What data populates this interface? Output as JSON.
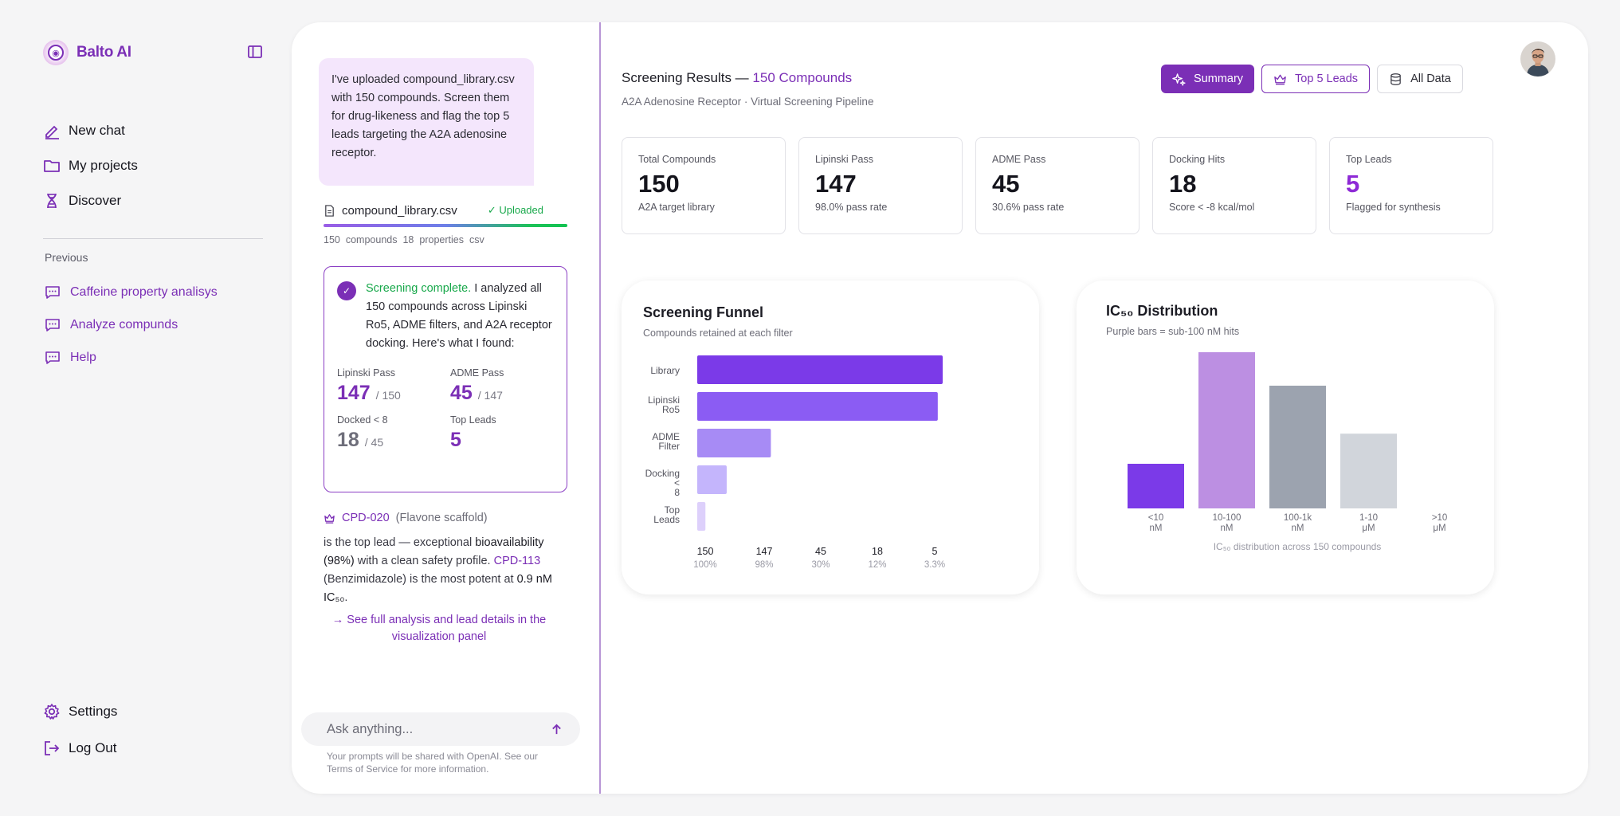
{
  "brand": {
    "name": "Balto AI"
  },
  "nav": {
    "new_chat": "New chat",
    "projects": "My projects",
    "discover": "Discover"
  },
  "previous": {
    "label": "Previous",
    "items": [
      "Caffeine property analisys",
      "Analyze compunds",
      "Help"
    ]
  },
  "bottom_nav": {
    "settings": "Settings",
    "logout": "Log Out"
  },
  "chat": {
    "user_message": "I've uploaded compound_library.csv with 150 compounds. Screen them for drug-likeness and flag the top 5 leads targeting the A2A adenosine receptor.",
    "file": {
      "name": "compound_library.csv",
      "status": "✓ Uploaded",
      "progress": 1.0,
      "meta": [
        "150",
        "compounds",
        "18",
        "properties",
        "csv"
      ]
    },
    "result": {
      "status": "Screening complete.",
      "text": " I analyzed all 150 compounds across Lipinski Ro5, ADME filters, and A2A receptor docking. Here's what I found:",
      "stats": [
        {
          "label": "Lipinski Pass",
          "value": "147",
          "den": "/ 150"
        },
        {
          "label": "ADME Pass",
          "value": "45",
          "den": "/ 147"
        },
        {
          "label": "Docked < 8",
          "value": "18",
          "den": "/ 45"
        },
        {
          "label": "Top Leads",
          "value": "5",
          "den": ""
        }
      ]
    },
    "lead": {
      "cpd": "CPD-020",
      "scaffold": "(Flavone scaffold)",
      "text_1": "is the top lead — exceptional ",
      "bold_1": "bioavailability (98%)",
      "text_2": " with a clean safety profile. ",
      "cpd_2": "CPD-113",
      "text_3": " (Benzimidazole) is the most potent at ",
      "bold_2": "0.9 nM IC₅₀",
      "text_4": "."
    },
    "see_full": "→ See full analysis and lead details in the visualization panel",
    "input_placeholder": "Ask anything...",
    "disclaimer": "Your prompts will be shared with OpenAI. See our Terms of Service for more information."
  },
  "results": {
    "title": "Screening Results — ",
    "title_accent": "150 Compounds",
    "subtitle": "A2A Adenosine Receptor · Virtual Screening Pipeline",
    "tabs": [
      "Summary",
      "Top 5 Leads",
      "All Data"
    ],
    "stats": [
      {
        "label": "Total Compounds",
        "value": "150",
        "sub": "A2A target library"
      },
      {
        "label": "Lipinski Pass",
        "value": "147",
        "sub": "98.0% pass rate"
      },
      {
        "label": "ADME Pass",
        "value": "45",
        "sub": "30.6% pass rate"
      },
      {
        "label": "Docking Hits",
        "value": "18",
        "sub": "Score < -8 kcal/mol"
      },
      {
        "label": "Top Leads",
        "value": "5",
        "sub": "Flagged for synthesis"
      }
    ]
  },
  "colors": {
    "accent": "#7b2fb6",
    "success": "#17a84a",
    "bright_purple": "#8e2ad6"
  },
  "chart_data": [
    {
      "type": "bar",
      "orientation": "horizontal",
      "title": "Screening Funnel",
      "subtitle": "Compounds retained at each filter",
      "categories": [
        "Library",
        "Lipinski Ro5",
        "ADME Filter",
        "Docking < 8",
        "Top Leads"
      ],
      "values": [
        150,
        147,
        45,
        18,
        5
      ],
      "value_labels": [
        "150",
        "147",
        "45",
        "18",
        "5"
      ],
      "pct_labels": [
        "100%",
        "98%",
        "30%",
        "12%",
        "3.3%"
      ],
      "colors": [
        "#7b3ae8",
        "#8b5cf3",
        "#a78bf5",
        "#c4b5fc",
        "#ddd0fb"
      ],
      "xlim": [
        0,
        150
      ]
    },
    {
      "type": "bar",
      "title": "IC₅₀ Distribution",
      "subtitle": "Purple bars = sub-100 nM hits",
      "categories": [
        "<10 nM",
        "10-100 nM",
        "100-1k nM",
        "1-10 μM",
        ">10 μM"
      ],
      "values": [
        4,
        14,
        11,
        6.7,
        0
      ],
      "colors": [
        "#7b3ae8",
        "#bc8fe2",
        "#9ca3af",
        "#d1d5db",
        "#d1d5db"
      ],
      "caption": "IC₅₀ distribution across 150 compounds",
      "ylim": [
        0,
        15
      ]
    }
  ]
}
